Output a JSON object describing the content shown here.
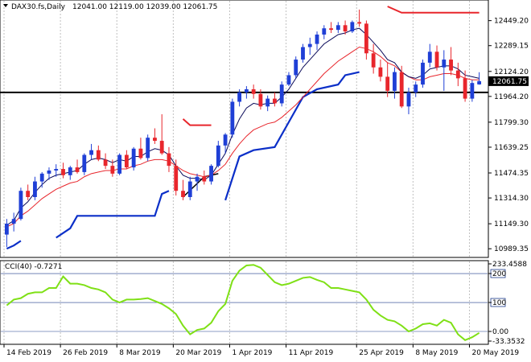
{
  "window": {
    "symbol_line": "DAX30.fs,Daily",
    "ohlc": "12041.00 12119.00 12039.00 12061.75",
    "indicator_line": "CCI(40) -0.7271"
  },
  "colors": {
    "bull": "#1f3fd6",
    "bear": "#e8262c",
    "ema_fast": "#0a0a5a",
    "ema_slow": "#e8262c",
    "stop_up": "#0b2fc8",
    "stop_down": "#e8262c",
    "cci": "#7fe016",
    "grid": "#c0c0c0",
    "level_line": "#1b3a8a",
    "price_box": "#000000"
  },
  "chart_data": [
    {
      "type": "candlestick",
      "title": "DAX30.fs,Daily",
      "y_ticks": [
        "12449.20",
        "12289.15",
        "12124.20",
        "11964.20",
        "11799.30",
        "11639.25",
        "11474.35",
        "11314.30",
        "11149.30",
        "10989.35"
      ],
      "ylim": [
        10975,
        12540
      ],
      "x_labels": [
        "14 Feb 2019",
        "26 Feb 2019",
        "8 Mar 2019",
        "20 Mar 2019",
        "1 Apr 2019",
        "11 Apr 2019",
        "25 Apr 2019",
        "8 May 2019",
        "20 May 2019"
      ],
      "x_label_index": [
        0,
        8,
        16,
        24,
        32,
        40,
        50,
        58,
        66
      ],
      "current_price": "12061.75",
      "horizontal_level": 11990,
      "candles": [
        {
          "o": 11080,
          "h": 11180,
          "l": 11000,
          "c": 11150
        },
        {
          "o": 11150,
          "h": 11220,
          "l": 11100,
          "c": 11180
        },
        {
          "o": 11180,
          "h": 11380,
          "l": 11170,
          "c": 11360
        },
        {
          "o": 11360,
          "h": 11400,
          "l": 11300,
          "c": 11320
        },
        {
          "o": 11320,
          "h": 11450,
          "l": 11300,
          "c": 11420
        },
        {
          "o": 11420,
          "h": 11480,
          "l": 11380,
          "c": 11470
        },
        {
          "o": 11470,
          "h": 11510,
          "l": 11430,
          "c": 11490
        },
        {
          "o": 11490,
          "h": 11530,
          "l": 11450,
          "c": 11500
        },
        {
          "o": 11500,
          "h": 11540,
          "l": 11440,
          "c": 11460
        },
        {
          "o": 11460,
          "h": 11520,
          "l": 11430,
          "c": 11510
        },
        {
          "o": 11510,
          "h": 11560,
          "l": 11470,
          "c": 11480
        },
        {
          "o": 11480,
          "h": 11600,
          "l": 11460,
          "c": 11590
        },
        {
          "o": 11590,
          "h": 11660,
          "l": 11560,
          "c": 11620
        },
        {
          "o": 11620,
          "h": 11650,
          "l": 11550,
          "c": 11560
        },
        {
          "o": 11560,
          "h": 11600,
          "l": 11500,
          "c": 11520
        },
        {
          "o": 11520,
          "h": 11560,
          "l": 11450,
          "c": 11470
        },
        {
          "o": 11470,
          "h": 11600,
          "l": 11460,
          "c": 11590
        },
        {
          "o": 11590,
          "h": 11620,
          "l": 11500,
          "c": 11510
        },
        {
          "o": 11510,
          "h": 11640,
          "l": 11490,
          "c": 11630
        },
        {
          "o": 11630,
          "h": 11700,
          "l": 11560,
          "c": 11570
        },
        {
          "o": 11570,
          "h": 11720,
          "l": 11550,
          "c": 11700
        },
        {
          "o": 11700,
          "h": 11760,
          "l": 11660,
          "c": 11680
        },
        {
          "o": 11680,
          "h": 11850,
          "l": 11590,
          "c": 11600
        },
        {
          "o": 11600,
          "h": 11640,
          "l": 11480,
          "c": 11520
        },
        {
          "o": 11520,
          "h": 11560,
          "l": 11330,
          "c": 11360
        },
        {
          "o": 11360,
          "h": 11430,
          "l": 11300,
          "c": 11320
        },
        {
          "o": 11320,
          "h": 11450,
          "l": 11300,
          "c": 11420
        },
        {
          "o": 11420,
          "h": 11470,
          "l": 11360,
          "c": 11450
        },
        {
          "o": 11450,
          "h": 11490,
          "l": 11400,
          "c": 11420
        },
        {
          "o": 11420,
          "h": 11530,
          "l": 11400,
          "c": 11520
        },
        {
          "o": 11520,
          "h": 11680,
          "l": 11510,
          "c": 11650
        },
        {
          "o": 11650,
          "h": 11730,
          "l": 11600,
          "c": 11720
        },
        {
          "o": 11720,
          "h": 11950,
          "l": 11700,
          "c": 11930
        },
        {
          "o": 11930,
          "h": 12010,
          "l": 11900,
          "c": 11990
        },
        {
          "o": 11990,
          "h": 12030,
          "l": 11950,
          "c": 12010
        },
        {
          "o": 12010,
          "h": 12040,
          "l": 11950,
          "c": 11980
        },
        {
          "o": 11980,
          "h": 12010,
          "l": 11880,
          "c": 11900
        },
        {
          "o": 11900,
          "h": 11970,
          "l": 11870,
          "c": 11950
        },
        {
          "o": 11950,
          "h": 11990,
          "l": 11900,
          "c": 11920
        },
        {
          "o": 11920,
          "h": 12060,
          "l": 11900,
          "c": 12040
        },
        {
          "o": 12040,
          "h": 12120,
          "l": 12030,
          "c": 12100
        },
        {
          "o": 12100,
          "h": 12220,
          "l": 12080,
          "c": 12200
        },
        {
          "o": 12200,
          "h": 12300,
          "l": 12180,
          "c": 12280
        },
        {
          "o": 12280,
          "h": 12340,
          "l": 12230,
          "c": 12300
        },
        {
          "o": 12300,
          "h": 12380,
          "l": 12260,
          "c": 12360
        },
        {
          "o": 12360,
          "h": 12420,
          "l": 12330,
          "c": 12400
        },
        {
          "o": 12400,
          "h": 12440,
          "l": 12370,
          "c": 12390
        },
        {
          "o": 12390,
          "h": 12440,
          "l": 12370,
          "c": 12420
        },
        {
          "o": 12420,
          "h": 12450,
          "l": 12360,
          "c": 12380
        },
        {
          "o": 12380,
          "h": 12450,
          "l": 12370,
          "c": 12440
        },
        {
          "o": 12440,
          "h": 12520,
          "l": 12410,
          "c": 12430
        },
        {
          "o": 12430,
          "h": 12450,
          "l": 12200,
          "c": 12240
        },
        {
          "o": 12240,
          "h": 12300,
          "l": 12110,
          "c": 12150
        },
        {
          "o": 12150,
          "h": 12200,
          "l": 12060,
          "c": 12090
        },
        {
          "o": 12090,
          "h": 12180,
          "l": 11960,
          "c": 12000
        },
        {
          "o": 12000,
          "h": 12150,
          "l": 11950,
          "c": 12120
        },
        {
          "o": 12120,
          "h": 12160,
          "l": 11890,
          "c": 11900
        },
        {
          "o": 11900,
          "h": 12020,
          "l": 11850,
          "c": 11990
        },
        {
          "o": 11990,
          "h": 12060,
          "l": 11960,
          "c": 12040
        },
        {
          "o": 12040,
          "h": 12200,
          "l": 12020,
          "c": 12180
        },
        {
          "o": 12180,
          "h": 12300,
          "l": 12150,
          "c": 12250
        },
        {
          "o": 12250,
          "h": 12290,
          "l": 12130,
          "c": 12150
        },
        {
          "o": 12150,
          "h": 12260,
          "l": 12000,
          "c": 12200
        },
        {
          "o": 12200,
          "h": 12280,
          "l": 12100,
          "c": 12130
        },
        {
          "o": 12130,
          "h": 12180,
          "l": 12030,
          "c": 12080
        },
        {
          "o": 12080,
          "h": 12130,
          "l": 11930,
          "c": 11950
        },
        {
          "o": 11950,
          "h": 12070,
          "l": 11930,
          "c": 12050
        },
        {
          "o": 12041,
          "h": 12119,
          "l": 12039,
          "c": 12062
        }
      ],
      "ema_fast": [
        11140,
        11170,
        11250,
        11290,
        11350,
        11400,
        11440,
        11460,
        11470,
        11480,
        11490,
        11530,
        11560,
        11570,
        11560,
        11540,
        11560,
        11550,
        11580,
        11580,
        11610,
        11630,
        11620,
        11590,
        11520,
        11460,
        11440,
        11440,
        11430,
        11460,
        11530,
        11600,
        11720,
        11820,
        11890,
        11920,
        11910,
        11920,
        11920,
        11960,
        12010,
        12080,
        12150,
        12200,
        12250,
        12300,
        12330,
        12360,
        12370,
        12390,
        12400,
        12360,
        12310,
        12260,
        12200,
        12180,
        12120,
        12090,
        12080,
        12100,
        12140,
        12150,
        12160,
        12160,
        12140,
        12100,
        12090,
        12080
      ],
      "ema_slow": [
        11130,
        11150,
        11200,
        11230,
        11270,
        11310,
        11340,
        11370,
        11390,
        11410,
        11420,
        11450,
        11470,
        11480,
        11490,
        11490,
        11500,
        11500,
        11520,
        11530,
        11550,
        11560,
        11560,
        11550,
        11520,
        11490,
        11470,
        11460,
        11450,
        11460,
        11490,
        11530,
        11600,
        11660,
        11710,
        11750,
        11770,
        11790,
        11800,
        11830,
        11870,
        11910,
        11960,
        12010,
        12060,
        12110,
        12150,
        12190,
        12220,
        12250,
        12280,
        12270,
        12250,
        12220,
        12180,
        12160,
        12120,
        12090,
        12070,
        12070,
        12090,
        12100,
        12110,
        12110,
        12100,
        12080,
        12070,
        12070
      ],
      "stop_up_segments": [
        [
          [
            0,
            10990
          ],
          [
            1,
            11010
          ],
          [
            2,
            11040
          ]
        ],
        [
          [
            7,
            11060
          ],
          [
            9,
            11120
          ],
          [
            10,
            11200
          ],
          [
            21,
            11200
          ],
          [
            22,
            11340
          ],
          [
            23,
            11360
          ]
        ],
        [
          [
            31,
            11300
          ],
          [
            33,
            11580
          ],
          [
            35,
            11620
          ],
          [
            38,
            11640
          ],
          [
            40,
            11800
          ],
          [
            42,
            11960
          ],
          [
            44,
            12010
          ],
          [
            47,
            12040
          ],
          [
            48,
            12100
          ],
          [
            49,
            12110
          ],
          [
            50,
            12120
          ]
        ]
      ],
      "stop_down_segments": [
        [
          [
            25,
            11820
          ],
          [
            26,
            11780
          ],
          [
            29,
            11780
          ]
        ],
        [
          [
            54,
            12540
          ],
          [
            56,
            12500
          ],
          [
            67,
            12500
          ]
        ]
      ],
      "trendline_segment": [
        [
          25,
          11320
        ],
        [
          28,
          11450
        ],
        [
          30,
          11470
        ]
      ]
    },
    {
      "type": "line",
      "title": "CCI(40) -0.7271",
      "y_ticks": [
        "233.4588",
        "200",
        "100",
        "0.00",
        "-33.3532"
      ],
      "ylim": [
        -33.3532,
        233.4588
      ],
      "levels": [
        200,
        100,
        0
      ],
      "series": [
        {
          "values": [
            90,
            110,
            115,
            130,
            135,
            135,
            150,
            150,
            190,
            165,
            165,
            160,
            150,
            145,
            135,
            110,
            100,
            110,
            110,
            112,
            115,
            105,
            95,
            80,
            60,
            20,
            -10,
            5,
            10,
            30,
            70,
            95,
            175,
            210,
            228,
            230,
            220,
            195,
            170,
            160,
            165,
            175,
            185,
            188,
            178,
            170,
            150,
            150,
            145,
            140,
            135,
            110,
            75,
            55,
            40,
            35,
            20,
            0,
            10,
            25,
            28,
            20,
            40,
            30,
            -10,
            -30,
            -20,
            -5
          ]
        }
      ]
    }
  ]
}
